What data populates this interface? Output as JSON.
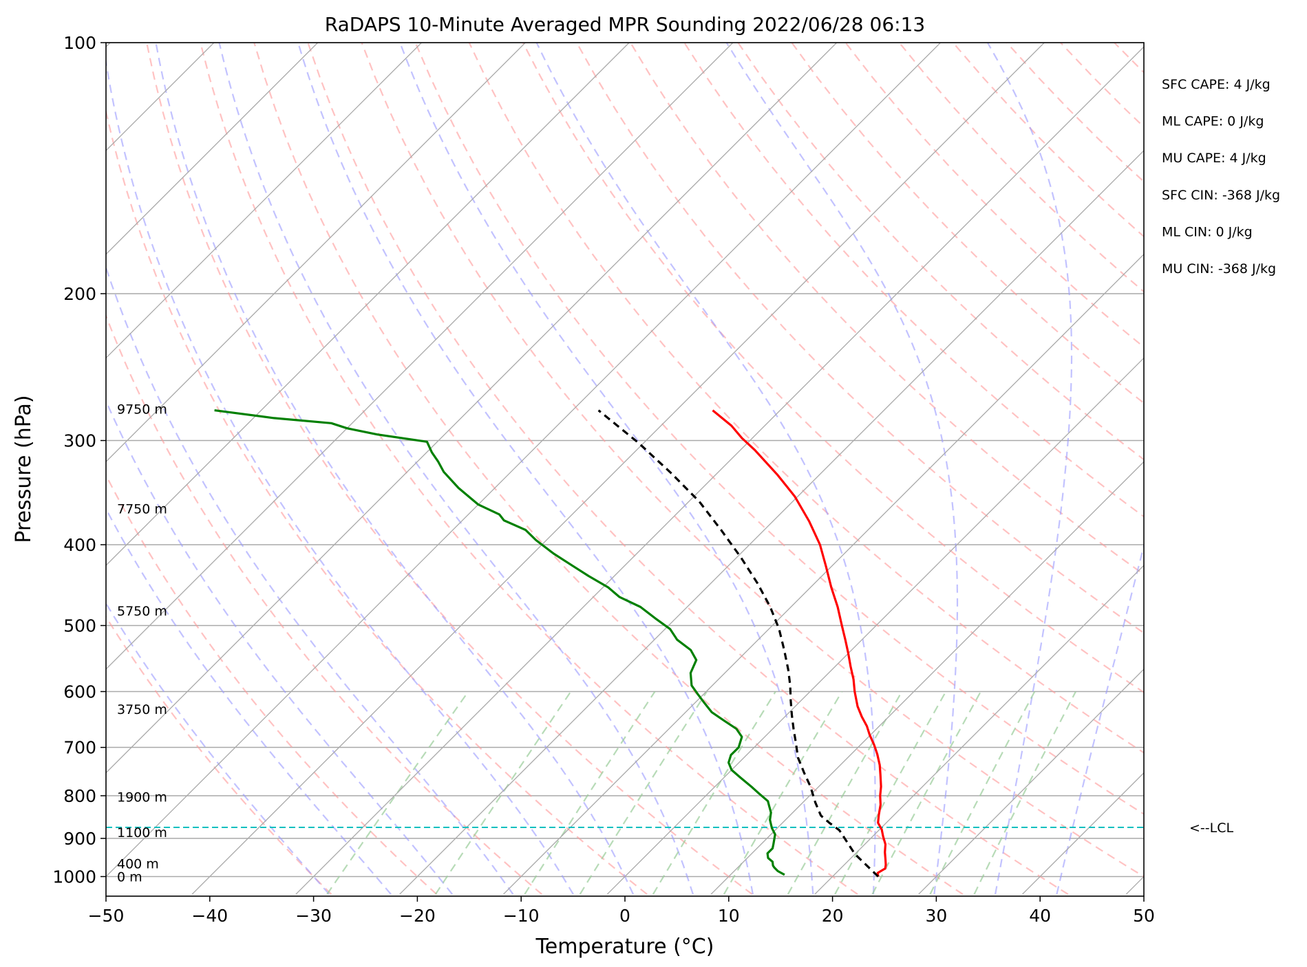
{
  "chart_data": {
    "type": "line",
    "title": "RaDAPS 10-Minute Averaged MPR Sounding 2022/06/28 06:13",
    "xlabel": "Temperature (°C)",
    "ylabel": "Pressure (hPa)",
    "xlim": [
      -50,
      50
    ],
    "ylim": [
      1050,
      100
    ],
    "y_scale": "log",
    "x_ticks": [
      -50,
      -40,
      -30,
      -20,
      -10,
      0,
      10,
      20,
      30,
      40,
      50
    ],
    "x_tick_labels": [
      "−50",
      "−40",
      "−30",
      "−20",
      "−10",
      "0",
      "10",
      "20",
      "30",
      "40",
      "50"
    ],
    "y_ticks": [
      100,
      200,
      300,
      400,
      500,
      600,
      700,
      800,
      900,
      1000
    ],
    "y_tick_labels": [
      "100",
      "200",
      "300",
      "400",
      "500",
      "600",
      "700",
      "800",
      "900",
      "1000"
    ],
    "grid": true,
    "skew": "skew-T log-p",
    "colors": {
      "temperature": "#ff0000",
      "dewpoint": "#008000",
      "parcel": "#000000",
      "isotherm": "#a9a9a9",
      "dry_adiabat": "#ff9999",
      "moist_adiabat": "#9999ff",
      "mixing_ratio": "#99cc99",
      "lcl": "#00bfbf"
    },
    "height_labels": [
      {
        "p": 1000,
        "label": "0 m"
      },
      {
        "p": 965,
        "label": "400 m"
      },
      {
        "p": 885,
        "label": "1100 m"
      },
      {
        "p": 802,
        "label": "1900 m"
      },
      {
        "p": 630,
        "label": "3750 m"
      },
      {
        "p": 480,
        "label": "5750 m"
      },
      {
        "p": 362,
        "label": "7750 m"
      },
      {
        "p": 275,
        "label": "9750 m"
      }
    ],
    "lcl": {
      "p": 873,
      "label": "<--LCL"
    },
    "stats": [
      "SFC CAPE: 4 J/kg",
      "ML CAPE: 0 J/kg",
      "MU CAPE: 4 J/kg",
      "SFC CIN: -368 J/kg",
      "ML CIN: 0 J/kg",
      "MU CIN: -368 J/kg"
    ],
    "series": [
      {
        "key": "temperature",
        "points": [
          [
            24.4,
            1000
          ],
          [
            24.0,
            990
          ],
          [
            24.3,
            978
          ],
          [
            24.0,
            968
          ],
          [
            23.5,
            955
          ],
          [
            22.7,
            935
          ],
          [
            22.0,
            915
          ],
          [
            21.0,
            895
          ],
          [
            20.2,
            878
          ],
          [
            19.2,
            862
          ],
          [
            18.5,
            843
          ],
          [
            17.7,
            820
          ],
          [
            16.8,
            800
          ],
          [
            16.0,
            780
          ],
          [
            14.8,
            755
          ],
          [
            13.8,
            735
          ],
          [
            12.5,
            713
          ],
          [
            11.3,
            695
          ],
          [
            9.9,
            676
          ],
          [
            8.8,
            660
          ],
          [
            7.4,
            643
          ],
          [
            6.0,
            625
          ],
          [
            4.3,
            600
          ],
          [
            3.0,
            580
          ],
          [
            1.5,
            560
          ],
          [
            0.0,
            540
          ],
          [
            -1.6,
            520
          ],
          [
            -3.3,
            500
          ],
          [
            -5.5,
            475
          ],
          [
            -8.0,
            450
          ],
          [
            -10.5,
            425
          ],
          [
            -13.2,
            400
          ],
          [
            -16.5,
            375
          ],
          [
            -20.3,
            350
          ],
          [
            -24.0,
            330
          ],
          [
            -28.6,
            308
          ],
          [
            -31.0,
            298
          ],
          [
            -33.2,
            288
          ],
          [
            -36.5,
            276
          ]
        ]
      },
      {
        "key": "dewpoint",
        "points": [
          [
            15.2,
            995
          ],
          [
            14.2,
            985
          ],
          [
            13.5,
            975
          ],
          [
            13.2,
            970
          ],
          [
            12.8,
            960
          ],
          [
            12.0,
            950
          ],
          [
            11.5,
            938
          ],
          [
            11.5,
            925
          ],
          [
            11.2,
            915
          ],
          [
            10.4,
            890
          ],
          [
            9.5,
            875
          ],
          [
            9.0,
            865
          ],
          [
            8.5,
            855
          ],
          [
            7.9,
            838
          ],
          [
            7.2,
            825
          ],
          [
            6.5,
            812
          ],
          [
            4.9,
            795
          ],
          [
            3.5,
            780
          ],
          [
            1.5,
            760
          ],
          [
            0.0,
            745
          ],
          [
            -1.0,
            730
          ],
          [
            -1.5,
            715
          ],
          [
            -1.5,
            700
          ],
          [
            -2.2,
            680
          ],
          [
            -3.5,
            665
          ],
          [
            -5.5,
            650
          ],
          [
            -7.5,
            635
          ],
          [
            -9.0,
            620
          ],
          [
            -10.5,
            605
          ],
          [
            -12.0,
            590
          ],
          [
            -13.3,
            570
          ],
          [
            -14.0,
            550
          ],
          [
            -15.5,
            535
          ],
          [
            -17.8,
            520
          ],
          [
            -19.5,
            505
          ],
          [
            -22.0,
            490
          ],
          [
            -24.5,
            475
          ],
          [
            -27.5,
            462
          ],
          [
            -29.5,
            450
          ],
          [
            -32.5,
            436
          ],
          [
            -35.0,
            424
          ],
          [
            -38.0,
            410
          ],
          [
            -41.0,
            395
          ],
          [
            -43.0,
            384
          ],
          [
            -46.0,
            374
          ],
          [
            -47.0,
            368
          ],
          [
            -50.0,
            358
          ],
          [
            -53.5,
            342
          ],
          [
            -56.5,
            327
          ],
          [
            -58.0,
            318
          ],
          [
            -59.5,
            310
          ],
          [
            -61.0,
            301
          ],
          [
            -66.5,
            295
          ],
          [
            -70.0,
            290
          ],
          [
            -72.0,
            286
          ],
          [
            -78.0,
            282
          ],
          [
            -84.5,
            276
          ]
        ]
      },
      {
        "key": "parcel",
        "points": [
          [
            24.4,
            1000
          ],
          [
            20.0,
            940
          ],
          [
            16.2,
            880
          ],
          [
            14.5,
            862
          ],
          [
            13.0,
            845
          ],
          [
            11.2,
            815
          ],
          [
            9.2,
            780
          ],
          [
            7.2,
            750
          ],
          [
            5.2,
            720
          ],
          [
            3.5,
            690
          ],
          [
            2.0,
            665
          ],
          [
            0.5,
            640
          ],
          [
            -1.0,
            615
          ],
          [
            -2.5,
            590
          ],
          [
            -4.2,
            565
          ],
          [
            -6.5,
            535
          ],
          [
            -9.0,
            505
          ],
          [
            -12.0,
            475
          ],
          [
            -15.5,
            445
          ],
          [
            -19.5,
            415
          ],
          [
            -24.0,
            385
          ],
          [
            -29.0,
            355
          ],
          [
            -34.5,
            328
          ],
          [
            -40.5,
            302
          ],
          [
            -47.5,
            276
          ]
        ]
      }
    ]
  }
}
